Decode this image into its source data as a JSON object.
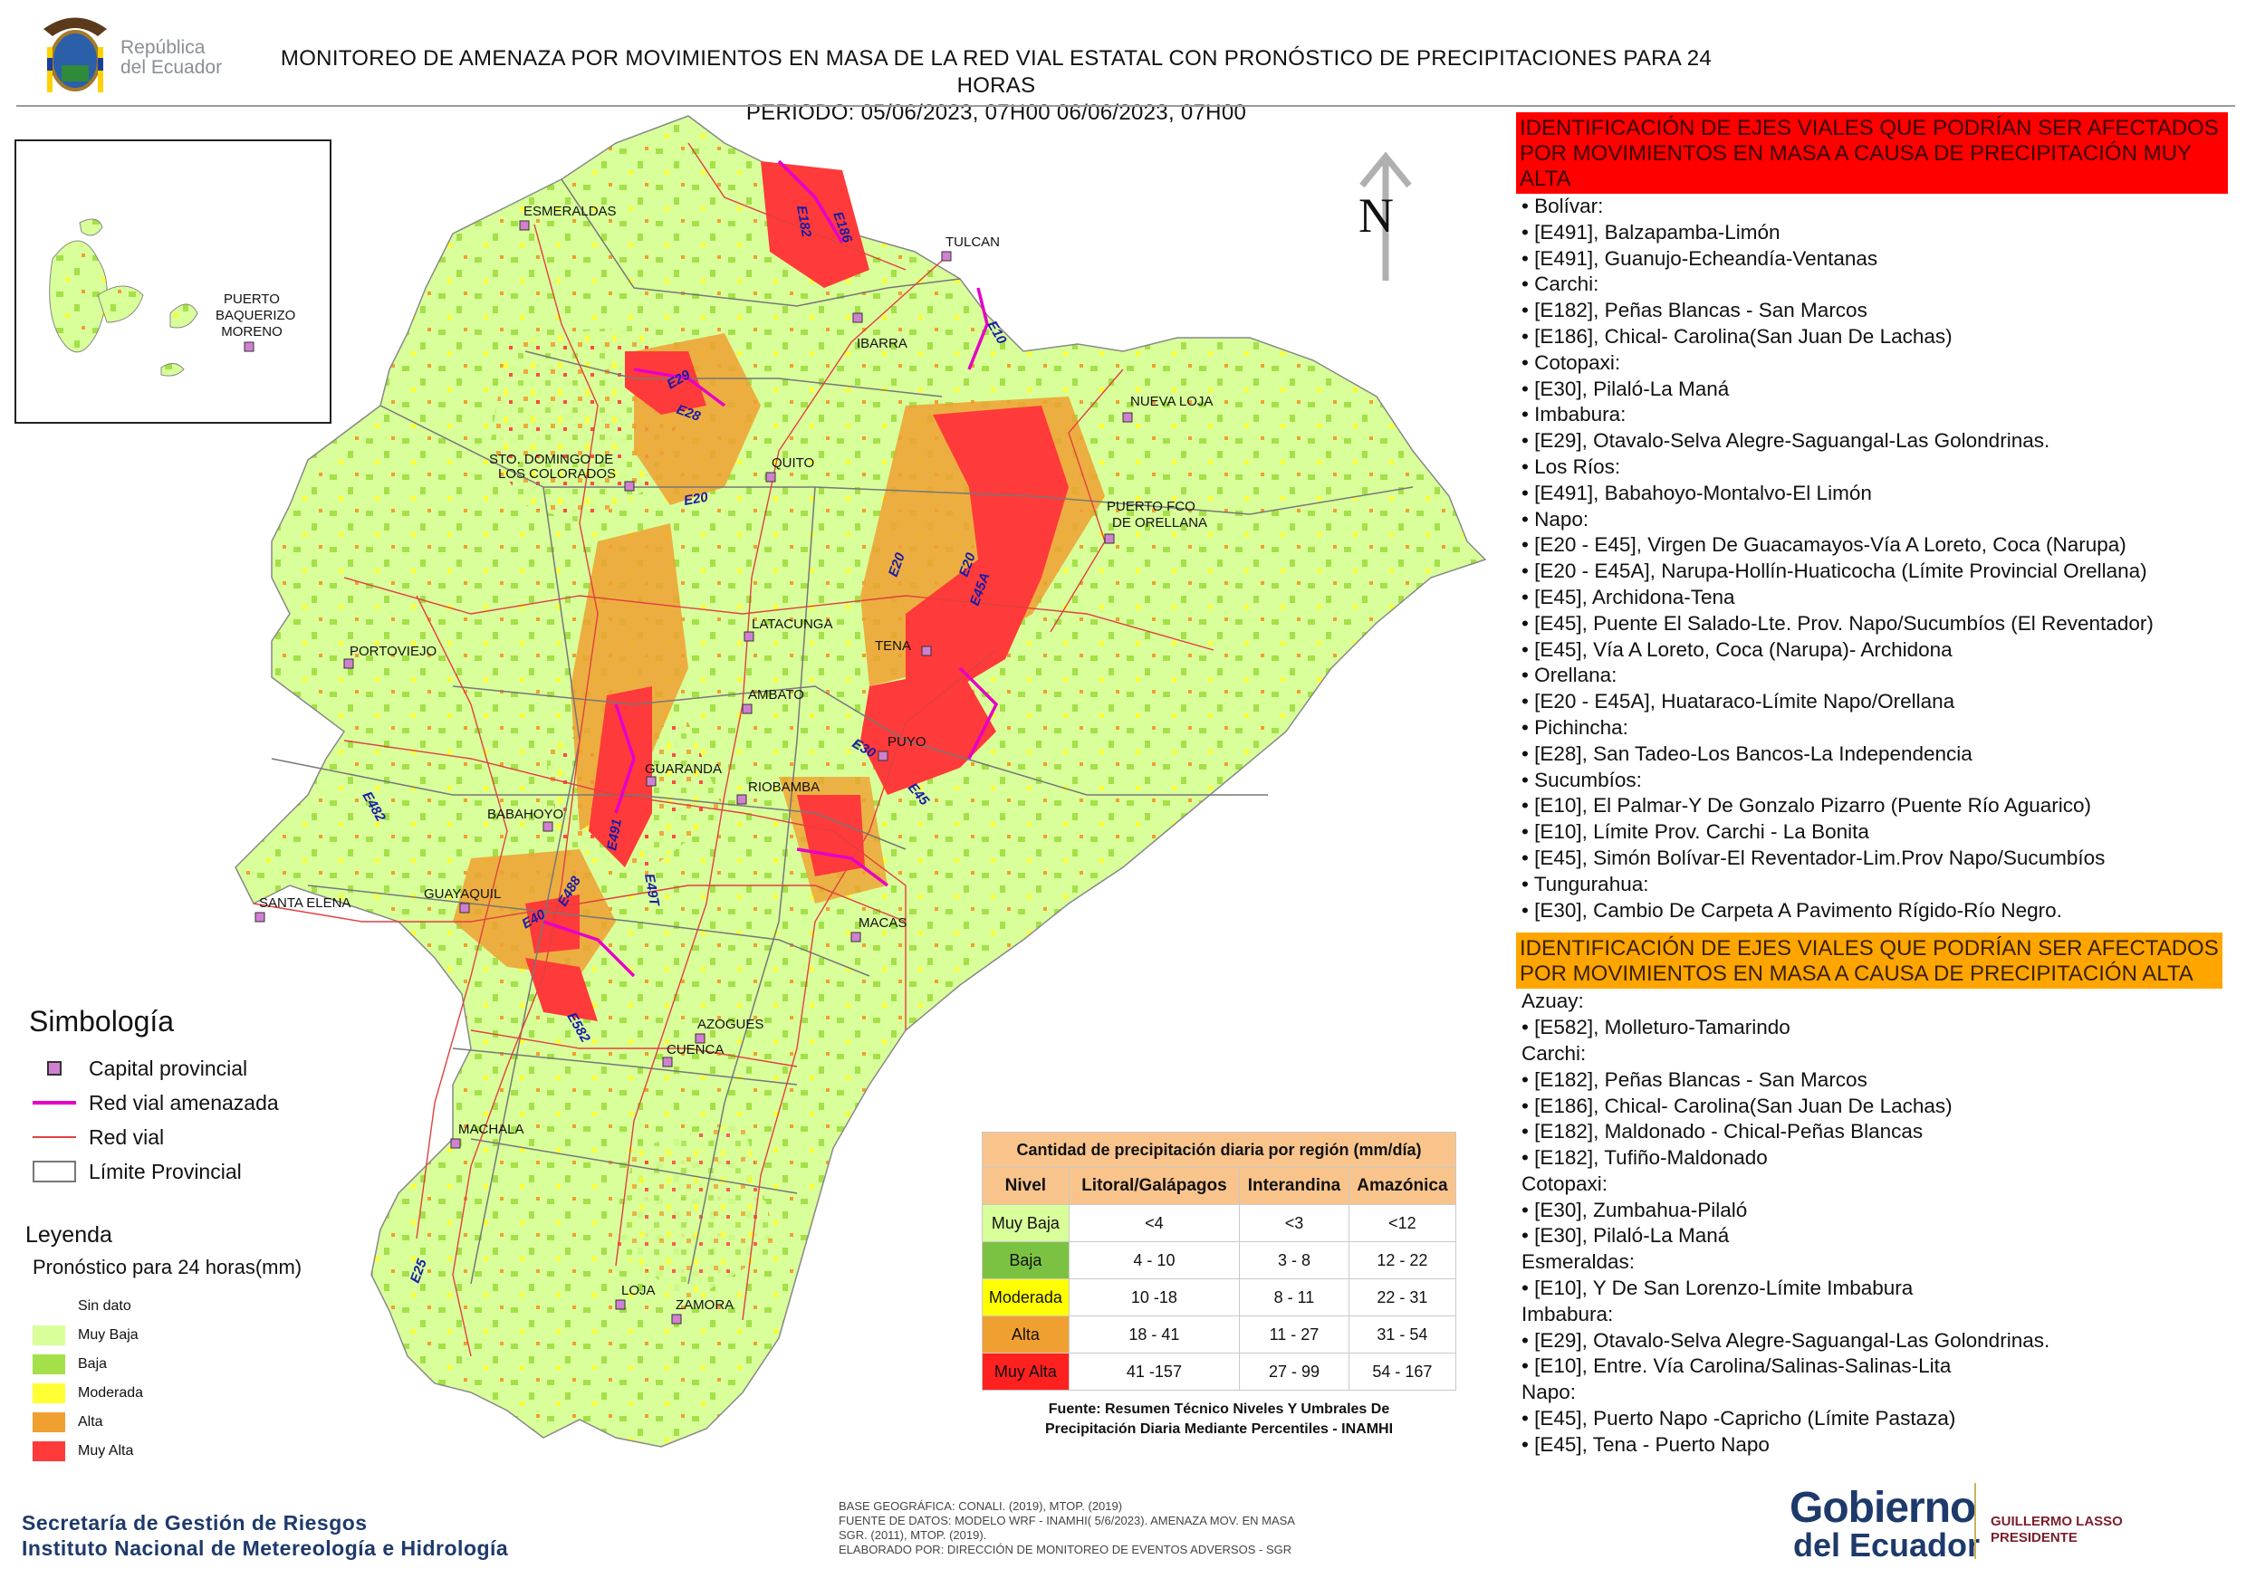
{
  "header": {
    "logo_text_line1": "República",
    "logo_text_line2": "del Ecuador",
    "title_line1": "MONITOREO DE AMENAZA POR MOVIMIENTOS EN MASA DE LA RED VIAL  ESTATAL  CON PRONÓSTICO  DE  PRECIPITACIONES PARA 24 HORAS",
    "title_line2": "PERIODO: 05/06/2023, 07H00 06/06/2023, 07H00"
  },
  "north_label": "N",
  "colors": {
    "muy_baja": "#d8ff9a",
    "baja": "#a4e048",
    "moderada": "#ffff33",
    "alta": "#f0a030",
    "muy_alta": "#ff3a3a",
    "road_threatened": "#e600c8",
    "road": "#e04040",
    "boundary": "#777777"
  },
  "inset": {
    "label_line1": "PUERTO",
    "label_line2": "BAQUERIZO",
    "label_line3": "MORENO"
  },
  "cities": [
    "ESMERALDAS",
    "TULCAN",
    "IBARRA",
    "NUEVA LOJA",
    "STO. DOMINGO DE",
    "LOS COLORADOS",
    "QUITO",
    "PUERTO FCO",
    "DE ORELLANA",
    "LATACUNGA",
    "TENA",
    "PORTOVIEJO",
    "AMBATO",
    "PUYO",
    "GUARANDA",
    "RIOBAMBA",
    "BABAHOYO",
    "SANTA ELENA",
    "GUAYAQUIL",
    "MACAS",
    "AZOGUES",
    "CUENCA",
    "MACHALA",
    "LOJA",
    "ZAMORA"
  ],
  "road_labels": [
    "E182",
    "E186",
    "E10",
    "E29",
    "E28",
    "E20",
    "E20",
    "E20",
    "E45A",
    "E30",
    "E45",
    "E482",
    "E491",
    "E488",
    "E40",
    "E49T",
    "E582",
    "E25"
  ],
  "symbology": {
    "title": "Simbología",
    "items": [
      "Capital provincial",
      "Red vial amenazada",
      "Red vial",
      "Límite Provincial"
    ]
  },
  "legend": {
    "title": "Leyenda",
    "subtitle": "Pronóstico para 24 horas(mm)",
    "items": [
      "Sin dato",
      "Muy Baja",
      "Baja",
      "Moderada",
      "Alta",
      "Muy Alta"
    ]
  },
  "precip_table": {
    "caption": "Cantidad de precipitación diaria por región (mm/día)",
    "headers": [
      "Nivel",
      "Litoral/Galápagos",
      "Interandina",
      "Amazónica"
    ],
    "rows": [
      {
        "nivel": "Muy Baja",
        "litoral": "<4",
        "interandina": "<3",
        "amazonica": "<12"
      },
      {
        "nivel": "Baja",
        "litoral": "4 - 10",
        "interandina": "3 - 8",
        "amazonica": "12 - 22"
      },
      {
        "nivel": "Moderada",
        "litoral": "10 -18",
        "interandina": "8 - 11",
        "amazonica": "22 - 31"
      },
      {
        "nivel": "Alta",
        "litoral": "18 - 41",
        "interandina": "11 - 27",
        "amazonica": "31 - 54"
      },
      {
        "nivel": "Muy Alta",
        "litoral": "41 -157",
        "interandina": "27 - 99",
        "amazonica": "54 - 167"
      }
    ],
    "source_line1": "Fuente: Resumen Técnico Niveles Y Umbrales De",
    "source_line2": "Precipitación Diaria Mediante Percentiles - INAMHI"
  },
  "muy_alta_panel": {
    "header": "IDENTIFICACIÓN DE EJES VIALES QUE PODRÍAN SER AFECTADOS POR MOVIMIENTOS EN MASA A CAUSA DE PRECIPITACIÓN MUY ALTA",
    "items": [
      "• Bolívar:",
      "• [E491], Balzapamba-Limón",
      "• [E491], Guanujo-Echeandía-Ventanas",
      "• Carchi:",
      "• [E182], Peñas Blancas - San Marcos",
      "• [E186], Chical- Carolina(San Juan De Lachas)",
      "• Cotopaxi:",
      "• [E30], Pilaló-La Maná",
      "• Imbabura:",
      "• [E29], Otavalo-Selva Alegre-Saguangal-Las Golondrinas.",
      "• Los Ríos:",
      "• [E491], Babahoyo-Montalvo-El Limón",
      "• Napo:",
      "• [E20 - E45], Virgen De Guacamayos-Vía A Loreto, Coca (Narupa)",
      "• [E20 - E45A], Narupa-Hollín-Huaticocha (Límite Provincial Orellana)",
      "• [E45], Archidona-Tena",
      "• [E45], Puente El Salado-Lte. Prov. Napo/Sucumbíos (El Reventador)",
      "• [E45], Vía A Loreto, Coca (Narupa)- Archidona",
      "• Orellana:",
      "• [E20 - E45A], Huataraco-Límite Napo/Orellana",
      "• Pichincha:",
      "• [E28], San Tadeo-Los Bancos-La Independencia",
      "• Sucumbíos:",
      "• [E10], El Palmar-Y De Gonzalo Pizarro (Puente Río Aguarico)",
      "• [E10], Límite Prov. Carchi - La Bonita",
      "• [E45], Simón Bolívar-El Reventador-Lim.Prov Napo/Sucumbíos",
      "• Tungurahua:",
      "• [E30], Cambio De Carpeta A Pavimento Rígido-Río Negro."
    ]
  },
  "alta_panel": {
    "header": "IDENTIFICACIÓN DE EJES VIALES QUE PODRÍAN SER AFECTADOS POR MOVIMIENTOS EN MASA A CAUSA DE PRECIPITACIÓN  ALTA",
    "items": [
      "Azuay:",
      "• [E582], Molleturo-Tamarindo",
      "Carchi:",
      "• [E182], Peñas Blancas - San Marcos",
      "• [E186], Chical- Carolina(San Juan De Lachas)",
      "• [E182], Maldonado - Chical-Peñas Blancas",
      "• [E182], Tufiño-Maldonado",
      "Cotopaxi:",
      "• [E30], Zumbahua-Pilaló",
      "• [E30], Pilaló-La Maná",
      "Esmeraldas:",
      "• [E10], Y De San Lorenzo-Límite Imbabura",
      "Imbabura:",
      "• [E29], Otavalo-Selva Alegre-Saguangal-Las Golondrinas.",
      "• [E10], Entre. Vía Carolina/Salinas-Salinas-Lita",
      "Napo:",
      "• [E45], Puerto Napo -Capricho (Límite Pastaza)",
      "• [E45], Tena - Puerto Napo"
    ]
  },
  "footer": {
    "org_line1": "Secretaría de Gestión de Riesgos",
    "org_line2": "Instituto Nacional de Metereología e Hidrología",
    "base_lines": [
      "BASE GEOGRÁFICA: CONALI. (2019), MTOP. (2019)",
      "FUENTE DE DATOS: MODELO WRF - INAMHI( 5/6/2023).  AMENAZA MOV. EN MASA",
      "SGR. (2011), MTOP. (2019).",
      "ELABORADO POR: DIRECCIÓN DE MONITOREO DE EVENTOS ADVERSOS - SGR"
    ],
    "gob_line1": "Gobierno",
    "gob_line2": "del Ecuador",
    "president_line1": "GUILLERMO LASSO",
    "president_line2": "PRESIDENTE"
  }
}
